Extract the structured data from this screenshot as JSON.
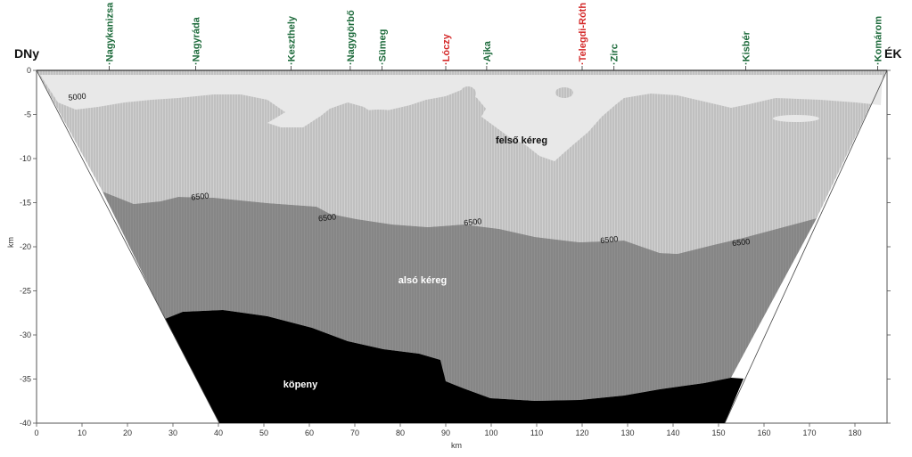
{
  "figure": {
    "direction_left": "DNy",
    "direction_right": "ÉK",
    "x_unit": "km",
    "y_unit": "km",
    "x_ticks": [
      "0",
      "10",
      "20",
      "30",
      "40",
      "50",
      "60",
      "70",
      "80",
      "90",
      "100",
      "110",
      "120",
      "130",
      "140",
      "150",
      "160",
      "170",
      "180"
    ],
    "y_ticks": [
      "0",
      "-5",
      "-10",
      "-15",
      "-20",
      "-25",
      "-30",
      "-35",
      "-40"
    ],
    "towns": [
      {
        "name": "·Nagykanizsa",
        "km": 16,
        "color": "#1e6b3c"
      },
      {
        "name": "·Nagyráda",
        "km": 35,
        "color": "#1e6b3c"
      },
      {
        "name": "·Keszthely",
        "km": 56,
        "color": "#1e6b3c"
      },
      {
        "name": "·Nagygörbő",
        "km": 69,
        "color": "#1e6b3c"
      },
      {
        "name": "·Sümeg",
        "km": 76,
        "color": "#1e6b3c"
      },
      {
        "name": "·Lóczy",
        "km": 90,
        "color": "#d42a2a"
      },
      {
        "name": "·Ajka",
        "km": 99,
        "color": "#1e6b3c"
      },
      {
        "name": "·Telegdi-Róth",
        "km": 120,
        "color": "#d42a2a"
      },
      {
        "name": "·Zirc",
        "km": 127,
        "color": "#1e6b3c"
      },
      {
        "name": "·Kisbér",
        "km": 156,
        "color": "#1e6b3c"
      },
      {
        "name": "·Komárom",
        "km": 185,
        "color": "#1e6b3c"
      }
    ],
    "layers": {
      "upper_crust": "felső kéreg",
      "lower_crust": "alsó kéreg",
      "mantle": "köpeny"
    },
    "isolines": [
      {
        "label": "5000",
        "km": 9,
        "depth": -3.3
      },
      {
        "label": "6500",
        "km": 36,
        "depth": -14.6
      },
      {
        "label": "6500",
        "km": 64,
        "depth": -17.0
      },
      {
        "label": "6500",
        "km": 96,
        "depth": -17.5
      },
      {
        "label": "6500",
        "km": 126,
        "depth": -19.5
      },
      {
        "label": "6500",
        "km": 155,
        "depth": -19.8
      }
    ],
    "colors": {
      "upper_crust": "#c4c4c4",
      "low_velocity": "#e6e6e6",
      "lower_crust": "#8c8c8c",
      "mantle": "#000000"
    }
  }
}
